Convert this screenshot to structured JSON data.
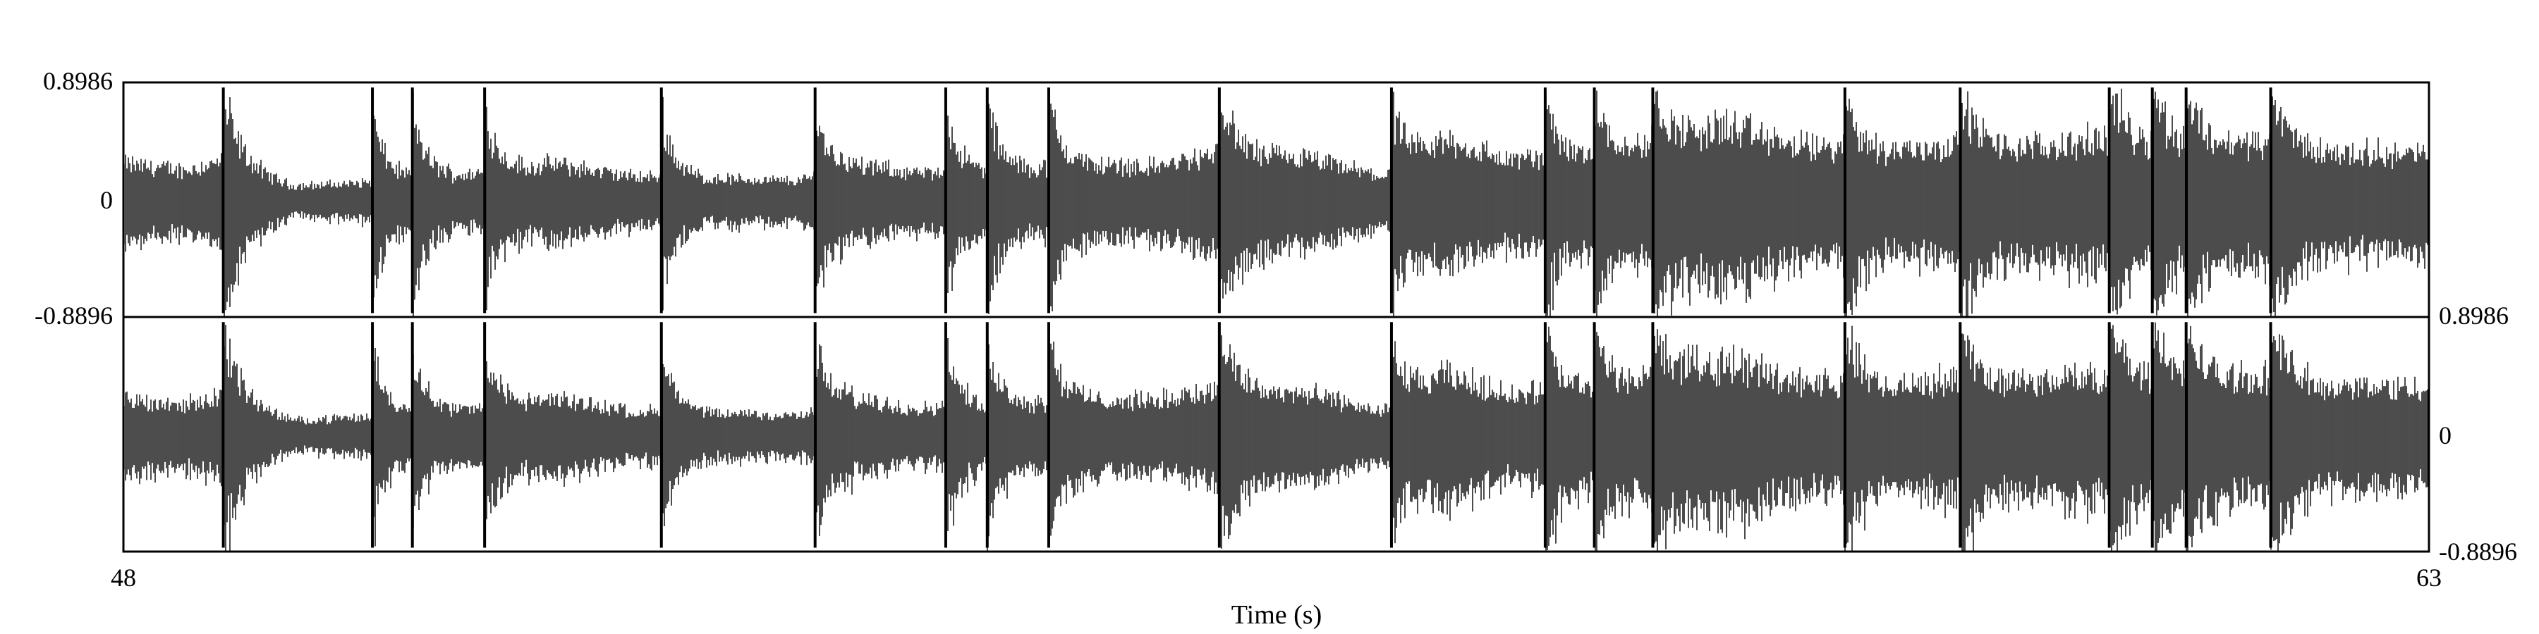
{
  "chart_data": {
    "type": "waveform",
    "xlabel": "Time (s)",
    "xlim": [
      48,
      63
    ],
    "x_tick_labels": [
      "48",
      "63"
    ],
    "channels": [
      {
        "ylim": [
          -0.8896,
          0.8986
        ],
        "y_tick_labels": [
          "0.8986",
          "0",
          "-0.8896"
        ],
        "axis_side": "left"
      },
      {
        "ylim": [
          -0.8896,
          0.8986
        ],
        "y_tick_labels": [
          "0.8986",
          "0",
          "-0.8896"
        ],
        "axis_side": "right"
      }
    ],
    "onsets_s": [
      48.65,
      49.62,
      49.88,
      50.35,
      51.5,
      52.5,
      53.35,
      53.62,
      54.02,
      55.13,
      56.25,
      57.25,
      57.57,
      57.95,
      59.2,
      59.95,
      60.92,
      61.2,
      61.42,
      61.97
    ],
    "envelope": [
      [
        48.0,
        0.3
      ],
      [
        48.4,
        0.25
      ],
      [
        48.7,
        0.34
      ],
      [
        49.1,
        0.12
      ],
      [
        49.5,
        0.14
      ],
      [
        49.9,
        0.2
      ],
      [
        50.3,
        0.22
      ],
      [
        50.8,
        0.3
      ],
      [
        51.3,
        0.2
      ],
      [
        51.9,
        0.18
      ],
      [
        52.4,
        0.16
      ],
      [
        52.7,
        0.3
      ],
      [
        53.2,
        0.22
      ],
      [
        53.7,
        0.24
      ],
      [
        54.2,
        0.3
      ],
      [
        54.7,
        0.28
      ],
      [
        55.2,
        0.4
      ],
      [
        55.7,
        0.34
      ],
      [
        56.2,
        0.2
      ],
      [
        56.6,
        0.5
      ],
      [
        57.0,
        0.34
      ],
      [
        57.6,
        0.38
      ],
      [
        58.1,
        0.52
      ],
      [
        58.4,
        0.62
      ],
      [
        58.9,
        0.45
      ],
      [
        59.4,
        0.4
      ],
      [
        59.9,
        0.46
      ],
      [
        60.4,
        0.44
      ],
      [
        60.9,
        0.5
      ],
      [
        61.4,
        0.46
      ],
      [
        61.9,
        0.48
      ],
      [
        62.4,
        0.4
      ],
      [
        63.0,
        0.38
      ]
    ],
    "grid": false
  }
}
